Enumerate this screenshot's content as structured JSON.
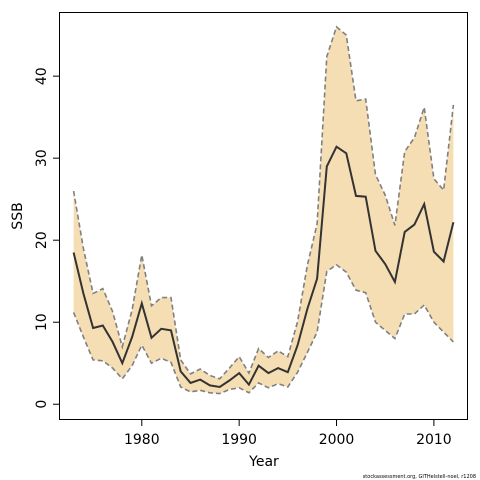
{
  "chart_data": {
    "type": "line",
    "xlabel": "Year",
    "ylabel": "SSB",
    "xlim": [
      1971.6,
      2013.4
    ],
    "ylim": [
      -1.8,
      47.7
    ],
    "x_ticks": [
      1980,
      1990,
      2000,
      2010
    ],
    "y_ticks": [
      0,
      10,
      20,
      30,
      40
    ],
    "grid": false,
    "fill_color": "#f5deb3",
    "line_color": "#333333",
    "bound_color": "#808080",
    "series": [
      {
        "name": "SSB",
        "x": [
          1973,
          1974,
          1975,
          1976,
          1977,
          1978,
          1979,
          1980,
          1981,
          1982,
          1983,
          1984,
          1985,
          1986,
          1987,
          1988,
          1989,
          1990,
          1991,
          1992,
          1993,
          1994,
          1995,
          1996,
          1997,
          1998,
          1999,
          2000,
          2001,
          2002,
          2003,
          2004,
          2005,
          2006,
          2007,
          2008,
          2009,
          2010,
          2011,
          2012
        ],
        "values": [
          18.5,
          13.5,
          9.3,
          9.6,
          7.6,
          5.0,
          8.2,
          12.3,
          8.1,
          9.2,
          9.0,
          4.0,
          2.6,
          3.0,
          2.3,
          2.1,
          2.9,
          3.8,
          2.4,
          4.7,
          3.8,
          4.4,
          3.9,
          7.2,
          11.6,
          15.3,
          29.0,
          31.4,
          30.6,
          25.4,
          25.3,
          18.7,
          17.1,
          14.9,
          21.0,
          21.9,
          24.4,
          18.6,
          17.4,
          22.2
        ]
      },
      {
        "name": "upper",
        "x": [
          1973,
          1974,
          1975,
          1976,
          1977,
          1978,
          1979,
          1980,
          1981,
          1982,
          1983,
          1984,
          1985,
          1986,
          1987,
          1988,
          1989,
          1990,
          1991,
          1992,
          1993,
          1994,
          1995,
          1996,
          1997,
          1998,
          1999,
          2000,
          2001,
          2002,
          2003,
          2004,
          2005,
          2006,
          2007,
          2008,
          2009,
          2010,
          2011,
          2012
        ],
        "values": [
          26.0,
          19.0,
          13.5,
          14.1,
          11.3,
          7.0,
          11.5,
          18.2,
          12.0,
          13.0,
          13.0,
          5.4,
          3.7,
          4.3,
          3.5,
          3.1,
          4.4,
          5.8,
          3.8,
          6.8,
          5.7,
          6.5,
          5.8,
          10.1,
          16.9,
          22.0,
          42.4,
          46.0,
          45.0,
          37.0,
          37.2,
          28.0,
          25.5,
          21.8,
          30.8,
          32.5,
          36.2,
          27.5,
          26.1,
          36.5
        ]
      },
      {
        "name": "lower",
        "x": [
          1973,
          1974,
          1975,
          1976,
          1977,
          1978,
          1979,
          1980,
          1981,
          1982,
          1983,
          1984,
          1985,
          1986,
          1987,
          1988,
          1989,
          1990,
          1991,
          1992,
          1993,
          1994,
          1995,
          1996,
          1997,
          1998,
          1999,
          2000,
          2001,
          2002,
          2003,
          2004,
          2005,
          2006,
          2007,
          2008,
          2009,
          2010,
          2011,
          2012
        ],
        "values": [
          11.2,
          8.2,
          5.4,
          5.3,
          4.4,
          3.1,
          4.7,
          7.2,
          5.0,
          5.6,
          5.1,
          2.1,
          1.5,
          1.7,
          1.4,
          1.3,
          1.8,
          2.0,
          1.4,
          2.6,
          2.0,
          2.5,
          2.1,
          3.9,
          6.3,
          8.8,
          16.2,
          17.0,
          16.1,
          13.9,
          13.6,
          10.0,
          9.0,
          8.0,
          11.0,
          11.0,
          12.1,
          10.0,
          8.8,
          7.6
        ]
      }
    ]
  },
  "credit_text": "stockassessment.org, GITHelstell-noel, r1208"
}
